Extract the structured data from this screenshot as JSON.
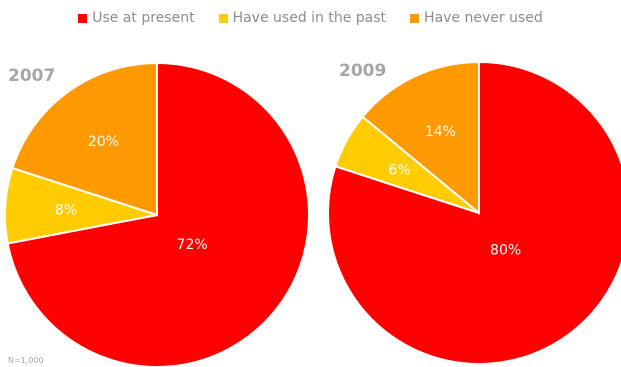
{
  "legend": [
    {
      "label": "Use at present",
      "color": "#ff0000"
    },
    {
      "label": "Have used in the past",
      "color": "#ffcc00"
    },
    {
      "label": "Have never used",
      "color": "#ff9900"
    }
  ],
  "note": "N=1,000",
  "chart_data": [
    {
      "type": "pie",
      "title": "2007",
      "categories": [
        "Use at present",
        "Have used in the past",
        "Have never used"
      ],
      "values": [
        72,
        8,
        20
      ],
      "labels": [
        "72%",
        "8%",
        "20%"
      ],
      "colors": [
        "#ff0000",
        "#ffcc00",
        "#ff9900"
      ],
      "legend_position": "top"
    },
    {
      "type": "pie",
      "title": "2009",
      "categories": [
        "Use at present",
        "Have used in the past",
        "Have never used"
      ],
      "values": [
        80,
        6,
        14
      ],
      "labels": [
        "80%",
        "6%",
        "14%"
      ],
      "colors": [
        "#ff0000",
        "#ffcc00",
        "#ff9900"
      ],
      "legend_position": "top"
    }
  ]
}
